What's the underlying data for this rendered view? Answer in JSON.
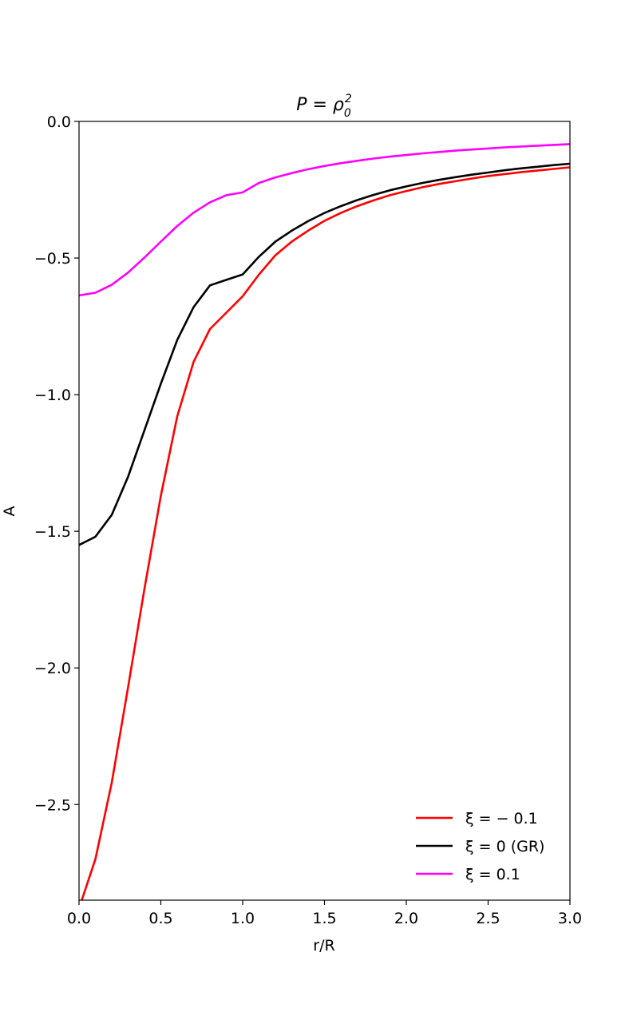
{
  "chart_data": {
    "type": "line",
    "title": {
      "base": "P = ρ",
      "sub": "0",
      "sup": "2"
    },
    "xlabel": "r/R",
    "ylabel": "A",
    "xlim": [
      0.0,
      3.0
    ],
    "ylim": [
      -2.85,
      0.0
    ],
    "xticks": [
      0.0,
      0.5,
      1.0,
      1.5,
      2.0,
      2.5,
      3.0
    ],
    "xtick_labels": [
      "0.0",
      "0.5",
      "1.0",
      "1.5",
      "2.0",
      "2.5",
      "3.0"
    ],
    "yticks": [
      0.0,
      -0.5,
      -1.0,
      -1.5,
      -2.0,
      -2.5
    ],
    "ytick_labels": [
      "0.0",
      "−0.5",
      "−1.0",
      "−1.5",
      "−2.0",
      "−2.5"
    ],
    "grid": false,
    "legend_position": "bottom-right",
    "x": [
      0.0,
      0.1,
      0.2,
      0.3,
      0.4,
      0.5,
      0.6,
      0.7,
      0.8,
      0.9,
      1.0,
      1.1,
      1.2,
      1.3,
      1.4,
      1.5,
      1.6,
      1.7,
      1.8,
      1.9,
      2.0,
      2.1,
      2.2,
      2.3,
      2.4,
      2.5,
      2.6,
      2.7,
      2.8,
      2.9,
      3.0
    ],
    "series": [
      {
        "name": "ξ = − 0.1",
        "color": "#ff0000",
        "values": [
          -2.88,
          -2.7,
          -2.42,
          -2.07,
          -1.71,
          -1.37,
          -1.08,
          -0.88,
          -0.76,
          -0.7,
          -0.64,
          -0.56,
          -0.49,
          -0.44,
          -0.4,
          -0.364,
          -0.335,
          -0.31,
          -0.289,
          -0.27,
          -0.255,
          -0.241,
          -0.229,
          -0.219,
          -0.209,
          -0.2,
          -0.193,
          -0.186,
          -0.18,
          -0.174,
          -0.168
        ]
      },
      {
        "name": "ξ = 0 (GR)",
        "color": "#000000",
        "values": [
          -1.55,
          -1.52,
          -1.44,
          -1.3,
          -1.13,
          -0.96,
          -0.8,
          -0.68,
          -0.6,
          -0.58,
          -0.56,
          -0.495,
          -0.44,
          -0.4,
          -0.365,
          -0.335,
          -0.31,
          -0.288,
          -0.269,
          -0.252,
          -0.238,
          -0.225,
          -0.214,
          -0.204,
          -0.195,
          -0.187,
          -0.179,
          -0.172,
          -0.166,
          -0.16,
          -0.155
        ]
      },
      {
        "name": "ξ = 0.1",
        "color": "#ff00ff",
        "values": [
          -0.637,
          -0.627,
          -0.598,
          -0.553,
          -0.498,
          -0.44,
          -0.383,
          -0.334,
          -0.296,
          -0.27,
          -0.26,
          -0.225,
          -0.205,
          -0.189,
          -0.175,
          -0.163,
          -0.153,
          -0.144,
          -0.136,
          -0.129,
          -0.123,
          -0.117,
          -0.112,
          -0.107,
          -0.103,
          -0.099,
          -0.095,
          -0.092,
          -0.089,
          -0.086,
          -0.083
        ]
      }
    ]
  }
}
